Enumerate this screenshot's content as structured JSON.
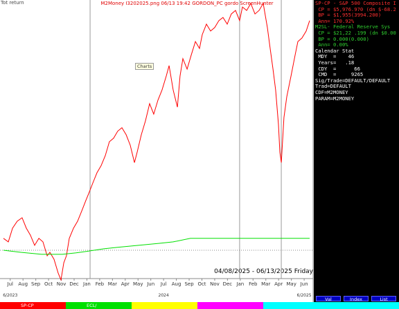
{
  "header": {
    "left": "Tot return",
    "title": "M2Money I3202025.png  06/13  19:42  GORDON_PC  gordo  ScreenHunter"
  },
  "charts_label": "Charts",
  "date_range": "04/08/2025 - 06/13/2025 Friday",
  "chart_data": {
    "type": "line",
    "xlim": [
      -0.8,
      23.7
    ],
    "ylim": [
      0,
      100
    ],
    "xticks": [
      {
        "value": 0,
        "label": "Jul"
      },
      {
        "value": 1,
        "label": "Aug"
      },
      {
        "value": 2,
        "label": "Sep"
      },
      {
        "value": 3,
        "label": "Oct"
      },
      {
        "value": 4,
        "label": "Nov"
      },
      {
        "value": 5,
        "label": "Dec"
      },
      {
        "value": 6,
        "label": "Jan"
      },
      {
        "value": 7,
        "label": "Feb"
      },
      {
        "value": 8,
        "label": "Mar"
      },
      {
        "value": 9,
        "label": "Apr"
      },
      {
        "value": 10,
        "label": "May"
      },
      {
        "value": 11,
        "label": "Jun"
      },
      {
        "value": 12,
        "label": "Jul"
      },
      {
        "value": 13,
        "label": "Aug"
      },
      {
        "value": 14,
        "label": "Sep"
      },
      {
        "value": 15,
        "label": "Oct"
      },
      {
        "value": 16,
        "label": "Nov"
      },
      {
        "value": 17,
        "label": "Dec"
      },
      {
        "value": 18,
        "label": "Jan"
      },
      {
        "value": 19,
        "label": "Feb"
      },
      {
        "value": 20,
        "label": "Mar"
      },
      {
        "value": 21,
        "label": "Apr"
      },
      {
        "value": 22,
        "label": "May"
      },
      {
        "value": 23,
        "label": "Jun"
      }
    ],
    "xticks2": [
      {
        "value": 0,
        "label": "6/2023"
      },
      {
        "value": 12,
        "label": "2024"
      },
      {
        "value": 23,
        "label": "6/2025"
      }
    ],
    "markers": [
      6.25,
      17.95,
      21.21
    ],
    "baseline": 13.8,
    "series": [
      {
        "name": "SP-CP",
        "color": "#ff0000",
        "x": [
          -0.53,
          -0.15,
          0.18,
          0.55,
          0.93,
          1.26,
          1.58,
          1.91,
          2.24,
          2.56,
          2.89,
          3.1,
          3.43,
          3.75,
          3.97,
          4.19,
          4.4,
          4.62,
          4.95,
          5.27,
          5.6,
          5.92,
          6.14,
          6.46,
          6.79,
          7.11,
          7.44,
          7.76,
          8.09,
          8.41,
          8.74,
          9.07,
          9.39,
          9.72,
          9.93,
          10.26,
          10.58,
          10.91,
          11.23,
          11.56,
          11.88,
          12.21,
          12.43,
          12.75,
          13.08,
          13.29,
          13.51,
          13.84,
          14.16,
          14.49,
          14.81,
          15.03,
          15.35,
          15.68,
          16.0,
          16.33,
          16.65,
          16.98,
          17.3,
          17.63,
          17.95,
          18.17,
          18.5,
          18.82,
          19.15,
          19.47,
          19.8,
          20.12,
          20.34,
          20.56,
          20.77,
          20.99,
          21.1,
          21.21,
          21.42,
          21.64,
          21.97,
          22.29,
          22.51,
          22.83,
          23.16,
          23.43
        ],
        "values": [
          17.9,
          16.7,
          21.4,
          23.8,
          25,
          21.4,
          19,
          15.5,
          17.9,
          16.7,
          11.9,
          13.1,
          10.7,
          6,
          3.6,
          9.5,
          11.9,
          17.9,
          21.4,
          23.8,
          27.4,
          31,
          33.3,
          36.9,
          40.5,
          42.9,
          46.4,
          51.2,
          52.4,
          54.8,
          56,
          53.6,
          50,
          44,
          47.6,
          53.6,
          58.3,
          64.3,
          60.7,
          65.5,
          69,
          73.8,
          77.4,
          69,
          63.1,
          73.8,
          79.8,
          76.2,
          81,
          85.7,
          83.3,
          88.1,
          91.7,
          89.3,
          90.5,
          92.9,
          94,
          91.7,
          95.2,
          96.4,
          92.9,
          97.6,
          96.4,
          98.8,
          95.2,
          96.4,
          98.8,
          90.5,
          83.3,
          76.2,
          69,
          57.1,
          47.6,
          44,
          59.5,
          66.7,
          73.8,
          81,
          85.7,
          86.9,
          89.3,
          92.9
        ]
      },
      {
        "name": "M2SL",
        "color": "#00e000",
        "x": [
          -0.53,
          0.83,
          2.45,
          4.08,
          5.16,
          6.25,
          7.33,
          8.41,
          10.04,
          11.67,
          12.75,
          14.1,
          23.43
        ],
        "values": [
          13.8,
          13.1,
          12.4,
          12.4,
          12.9,
          13.6,
          14.3,
          14.8,
          15.5,
          16.2,
          16.7,
          17.9,
          17.9
        ]
      }
    ]
  },
  "panel": {
    "lines": [
      {
        "text": "SP-CP - S&P 500 Composite I",
        "style": "r"
      },
      {
        "text": " CP = $5,976.970 (dn $-68.2",
        "style": "r"
      },
      {
        "text": " BP = $1,955(3994.200)",
        "style": "r"
      },
      {
        "text": " Ann= 170.92%",
        "style": "r"
      },
      {
        "text": "M2SL- Federal Reserve Sys",
        "style": "g"
      },
      {
        "text": " CP = $21,22 .199 (dn $0.00",
        "style": "g"
      },
      {
        "text": " BP = 0.000(0.000)",
        "style": "g"
      },
      {
        "text": " Ann= 0.00%",
        "style": "g"
      },
      {
        "text": "Calendar Stat",
        "style": "w"
      },
      {
        "text": " MDY  =    46",
        "style": "w"
      },
      {
        "text": " Years=   .18",
        "style": "w"
      },
      {
        "text": " CDY  =      66",
        "style": "w"
      },
      {
        "text": " CMD  =     9265",
        "style": "w"
      },
      {
        "text": "Sig/Trade=DEFAULT/DEFAULT",
        "style": "w"
      },
      {
        "text": "Trad=DEFAULT",
        "style": "w"
      },
      {
        "text": "CDF=M2MONEY",
        "style": "w"
      },
      {
        "text": "PARAM=M2MONEY",
        "style": "w"
      }
    ],
    "buttons": [
      "Val",
      "Index",
      "List"
    ]
  },
  "bottom_tabs": [
    {
      "label": "SP-CP",
      "color": "#ff0000"
    },
    {
      "label": "ECL/",
      "color": "#00e000"
    },
    {
      "label": "",
      "color": "#ffff00"
    },
    {
      "label": "",
      "color": "#ff00ff"
    },
    {
      "label": "",
      "color": "#00ffff"
    }
  ]
}
